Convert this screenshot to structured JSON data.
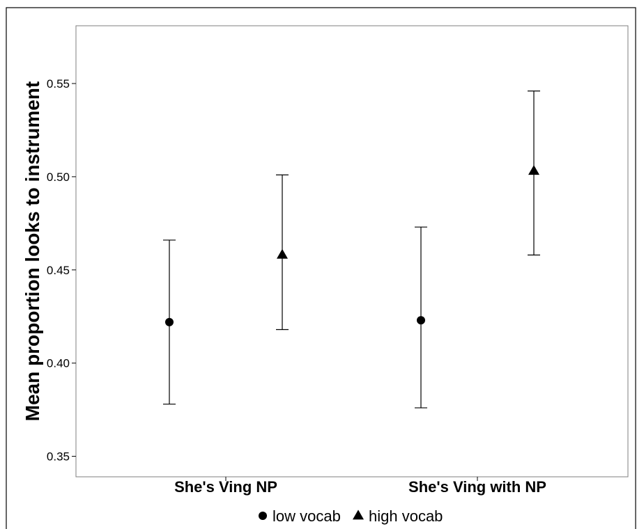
{
  "chart_data": {
    "type": "scatter",
    "ylabel": "Mean proportion looks to instrument",
    "xlabel": "",
    "categories": [
      "She's Ving NP",
      "She's Ving with NP"
    ],
    "ylim": [
      0.339,
      0.581
    ],
    "yticks": [
      "0.35",
      "0.40",
      "0.45",
      "0.50",
      "0.55"
    ],
    "grid": false,
    "legend_position": "bottom",
    "series": [
      {
        "name": "low vocab",
        "marker": "circle",
        "values": [
          0.422,
          0.423
        ],
        "lower": [
          0.378,
          0.376
        ],
        "upper": [
          0.466,
          0.473
        ]
      },
      {
        "name": "high vocab",
        "marker": "triangle",
        "values": [
          0.458,
          0.503
        ],
        "lower": [
          0.418,
          0.458
        ],
        "upper": [
          0.501,
          0.546
        ]
      }
    ]
  }
}
